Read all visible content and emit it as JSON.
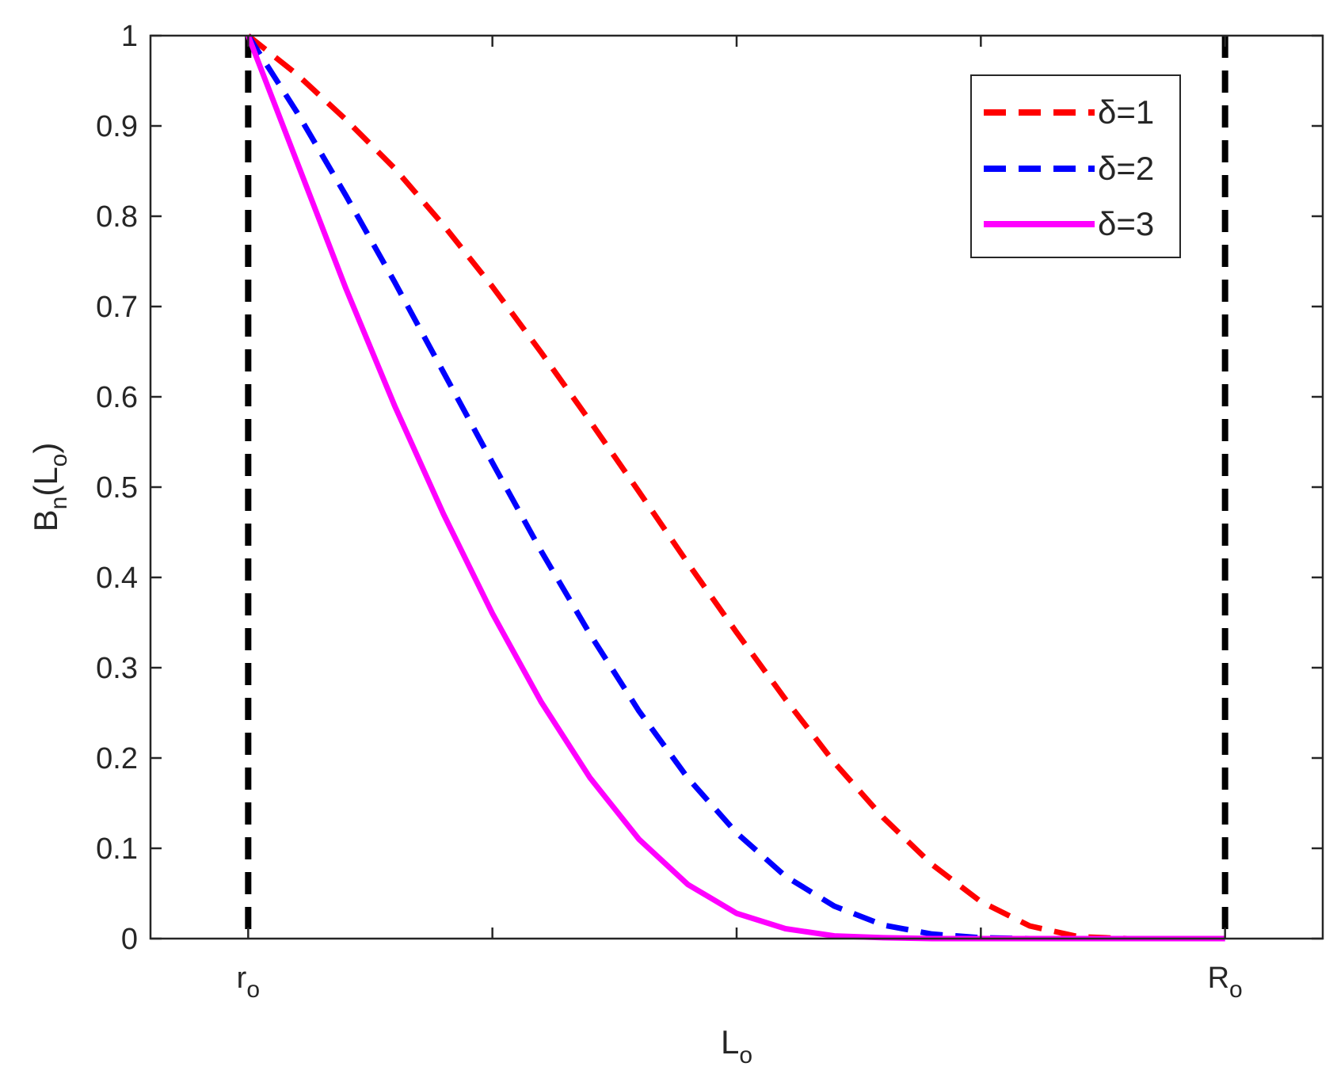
{
  "chart_data": {
    "type": "line",
    "xlabel": {
      "main": "L",
      "sub": "o"
    },
    "ylabel": {
      "main": "B",
      "sub1": "n",
      "mid": "(L",
      "sub2": "o",
      "end": ")"
    },
    "xlim": [
      0,
      1
    ],
    "ylim": [
      0,
      1
    ],
    "x_ticks": [
      {
        "x": 0.1,
        "main": "r",
        "sub": "o"
      },
      {
        "x": 0.35,
        "main": "",
        "sub": ""
      },
      {
        "x": 0.6,
        "main": "",
        "sub": ""
      },
      {
        "x": 0.85,
        "main": "",
        "sub": ""
      },
      {
        "x": 1.1,
        "main": "R",
        "sub": "o"
      }
    ],
    "y_ticks": [
      {
        "y": 0,
        "label": "0"
      },
      {
        "y": 0.1,
        "label": "0.1"
      },
      {
        "y": 0.2,
        "label": "0.2"
      },
      {
        "y": 0.3,
        "label": "0.3"
      },
      {
        "y": 0.4,
        "label": "0.4"
      },
      {
        "y": 0.5,
        "label": "0.5"
      },
      {
        "y": 0.6,
        "label": "0.6"
      },
      {
        "y": 0.7,
        "label": "0.7"
      },
      {
        "y": 0.8,
        "label": "0.8"
      },
      {
        "y": 0.9,
        "label": "0.9"
      },
      {
        "y": 1,
        "label": "1"
      }
    ],
    "reference_lines": [
      {
        "name": "r_o",
        "x": 0.1,
        "color": "#000000",
        "style": "dashed"
      },
      {
        "name": "R_o",
        "x": 1.1,
        "color": "#000000",
        "style": "dashed"
      }
    ],
    "series": [
      {
        "name": "δ=1",
        "color": "#ff0000",
        "style": "dashed",
        "x": [
          0.1,
          0.15,
          0.2,
          0.25,
          0.3,
          0.35,
          0.4,
          0.45,
          0.5,
          0.55,
          0.6,
          0.65,
          0.7,
          0.75,
          0.8,
          0.85,
          0.9,
          0.95,
          1.0,
          1.1
        ],
        "y": [
          1.0,
          0.957,
          0.907,
          0.853,
          0.79,
          0.722,
          0.649,
          0.573,
          0.495,
          0.416,
          0.339,
          0.265,
          0.195,
          0.134,
          0.082,
          0.041,
          0.014,
          0.002,
          0.0,
          0.0
        ]
      },
      {
        "name": "δ=2",
        "color": "#0000ff",
        "style": "dashed",
        "x": [
          0.1,
          0.15,
          0.2,
          0.25,
          0.3,
          0.35,
          0.4,
          0.45,
          0.5,
          0.55,
          0.6,
          0.65,
          0.7,
          0.75,
          0.8,
          0.85,
          0.9,
          1.0,
          1.1
        ],
        "y": [
          1.0,
          0.915,
          0.823,
          0.727,
          0.627,
          0.527,
          0.429,
          0.337,
          0.252,
          0.178,
          0.117,
          0.069,
          0.036,
          0.015,
          0.005,
          0.001,
          0.0,
          0.0,
          0.0
        ]
      },
      {
        "name": "δ=3",
        "color": "#ff00ff",
        "style": "solid",
        "x": [
          0.1,
          0.15,
          0.2,
          0.25,
          0.3,
          0.35,
          0.4,
          0.45,
          0.5,
          0.55,
          0.6,
          0.65,
          0.7,
          0.75,
          0.8,
          0.85,
          0.9,
          1.0,
          1.1
        ],
        "y": [
          1.0,
          0.86,
          0.72,
          0.59,
          0.47,
          0.36,
          0.262,
          0.178,
          0.11,
          0.06,
          0.028,
          0.011,
          0.003,
          0.001,
          0.0,
          0.0,
          0.0,
          0.0,
          0.0
        ]
      }
    ],
    "legend_position": "top-right",
    "grid": false
  }
}
